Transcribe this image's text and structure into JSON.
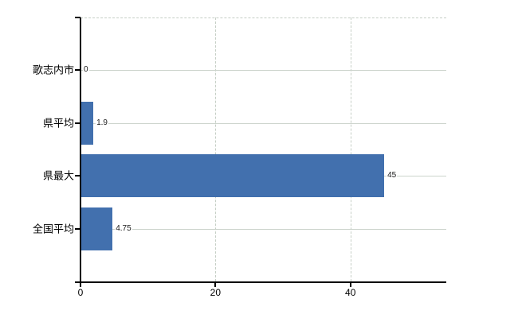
{
  "chart_data": {
    "type": "bar",
    "orientation": "horizontal",
    "title": "",
    "categories": [
      "歌志内市",
      "県平均",
      "県最大",
      "全国平均"
    ],
    "values": [
      0,
      1.9,
      45,
      4.75
    ],
    "value_labels": [
      "0",
      "1.9",
      "45",
      "4.75"
    ],
    "x_ticks": [
      {
        "value": 0,
        "label": "0"
      },
      {
        "value": 20,
        "label": "20"
      },
      {
        "value": 40,
        "label": "40"
      }
    ],
    "xlim": [
      0,
      54.2
    ],
    "grid": {
      "horizontal": "solid",
      "vertical": "dashed",
      "top_boundary": "dashed"
    },
    "legend": "none",
    "colors": {
      "bar": "#4270ae",
      "gridline_horizontal": "#ccd4cc",
      "gridline_vertical": "#c6cfc6",
      "axis": "#000000",
      "text": "#000000",
      "background": "#ffffff"
    }
  }
}
